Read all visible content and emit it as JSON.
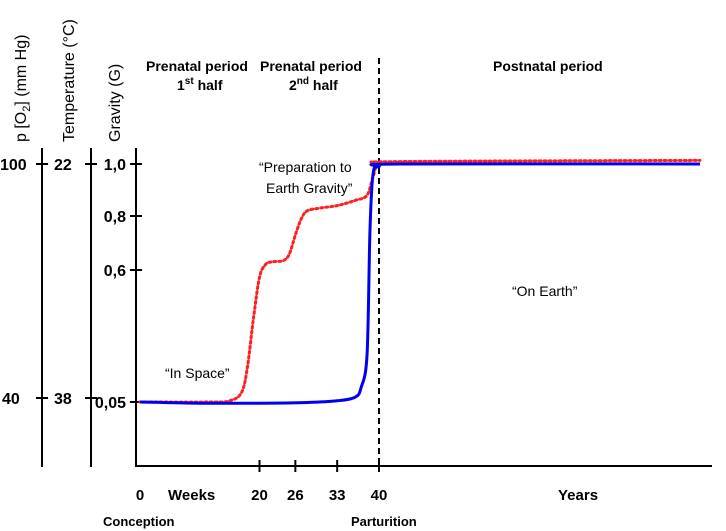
{
  "chart_data": {
    "type": "line",
    "axes": {
      "oxygen": {
        "title_main": "p [O",
        "title_sub": "2",
        "title_end": "] (mm Hg)",
        "ticks": [
          "100",
          "40"
        ]
      },
      "temperature": {
        "title": "Temperature (°C)",
        "ticks": [
          "22",
          "38"
        ]
      },
      "gravity": {
        "title": "Gravity (G)",
        "ticks": [
          "1,0",
          "0,8",
          "0,6",
          "0,05"
        ],
        "tick_values": [
          1.0,
          0.8,
          0.6,
          0.05
        ]
      }
    },
    "x_axis": {
      "ticks": [
        "0",
        "20",
        "26",
        "33",
        "40"
      ],
      "tick_weeks": [
        0,
        20,
        26,
        33,
        40
      ],
      "weeks_label": "Weeks",
      "years_label": "Years",
      "conception_label": "Conception",
      "parturition_label": "Parturition"
    },
    "periods": {
      "first": {
        "line1": "Prenatal period",
        "line2_main": "1",
        "line2_sup": "st",
        "line2_end": " half"
      },
      "second": {
        "line1": "Prenatal period",
        "line2_main": "2",
        "line2_sup": "nd",
        "line2_end": " half"
      },
      "postnatal": {
        "label": "Postnatal period"
      }
    },
    "annotations": {
      "in_space": "“In Space”",
      "preparation_line1": "“Preparation to",
      "preparation_line2": "Earth Gravity”",
      "on_earth": "“On Earth”"
    },
    "series": [
      {
        "name": "Gravity (G)",
        "style": "dotted",
        "color": "#ff2020",
        "points": [
          [
            0,
            0.05
          ],
          [
            12,
            0.05
          ],
          [
            15,
            0.055
          ],
          [
            17,
            0.09
          ],
          [
            18,
            0.2
          ],
          [
            19,
            0.4
          ],
          [
            20,
            0.57
          ],
          [
            21,
            0.62
          ],
          [
            22,
            0.63
          ],
          [
            24,
            0.635
          ],
          [
            25,
            0.66
          ],
          [
            26,
            0.73
          ],
          [
            27,
            0.79
          ],
          [
            28,
            0.82
          ],
          [
            30,
            0.83
          ],
          [
            33,
            0.84
          ],
          [
            36,
            0.86
          ],
          [
            38,
            0.88
          ],
          [
            39,
            0.95
          ],
          [
            40,
            1.0
          ],
          [
            44,
            1.01
          ],
          [
            100,
            1.015
          ]
        ]
      },
      {
        "name": "p[O2] / Temperature",
        "style": "solid",
        "color": "#0000ee",
        "points": [
          [
            0,
            0.05
          ],
          [
            10,
            0.045
          ],
          [
            20,
            0.045
          ],
          [
            28,
            0.048
          ],
          [
            33,
            0.055
          ],
          [
            36,
            0.07
          ],
          [
            37,
            0.11
          ],
          [
            38,
            0.25
          ],
          [
            38.5,
            0.75
          ],
          [
            39,
            0.96
          ],
          [
            40,
            0.99
          ],
          [
            44,
            1.0
          ],
          [
            100,
            1.0
          ]
        ]
      }
    ]
  }
}
